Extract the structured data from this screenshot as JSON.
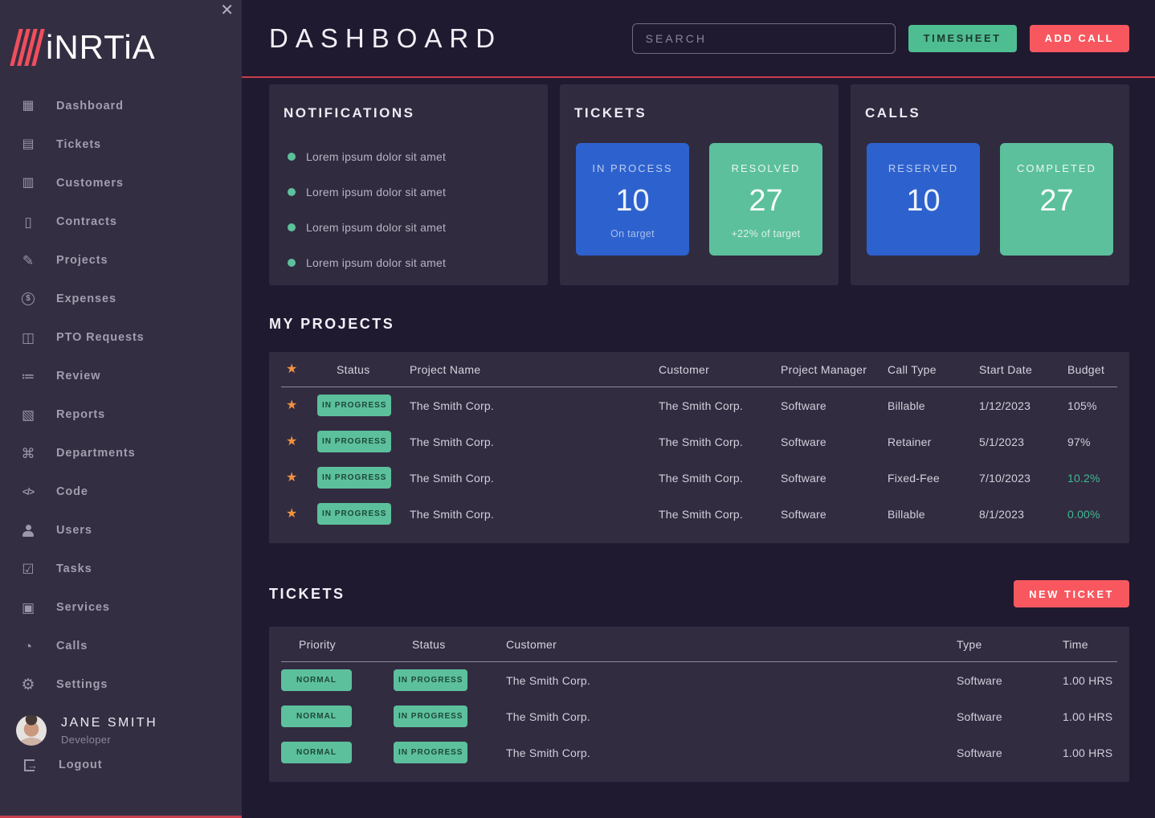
{
  "colors": {
    "page_bg": "#201a31",
    "sidebar_bg": "#342e43",
    "card_bg": "#312b40",
    "table_bg": "#322c41",
    "accent_red": "#f8575f",
    "accent_green": "#5cc09c",
    "accent_blue": "#2d62ce",
    "star_orange": "#f0923f",
    "line_red": "#c93e4d"
  },
  "sidebar": {
    "logo_text": "iNRTiA",
    "close_glyph": "✕",
    "items": [
      {
        "name": "sidebar-item-dashboard",
        "icon_name": "dashboard-icon",
        "glyph": "▦",
        "label": "Dashboard"
      },
      {
        "name": "sidebar-item-tickets",
        "icon_name": "tickets-icon",
        "glyph": "▤",
        "label": "Tickets"
      },
      {
        "name": "sidebar-item-customers",
        "icon_name": "customers-icon",
        "glyph": "▥",
        "label": "Customers"
      },
      {
        "name": "sidebar-item-contracts",
        "icon_name": "contracts-icon",
        "glyph": "▯",
        "label": "Contracts"
      },
      {
        "name": "sidebar-item-projects",
        "icon_name": "projects-icon",
        "glyph": "✎",
        "label": "Projects"
      },
      {
        "name": "sidebar-item-expenses",
        "icon_name": "expenses-icon",
        "glyph": "$",
        "label": "Expenses"
      },
      {
        "name": "sidebar-item-pto-requests",
        "icon_name": "pto-requests-icon",
        "glyph": "◫",
        "label": "PTO Requests"
      },
      {
        "name": "sidebar-item-review",
        "icon_name": "review-icon",
        "glyph": "≔",
        "label": "Review"
      },
      {
        "name": "sidebar-item-reports",
        "icon_name": "reports-icon",
        "glyph": "▧",
        "label": "Reports"
      },
      {
        "name": "sidebar-item-departments",
        "icon_name": "departments-icon",
        "glyph": "⌘",
        "label": "Departments"
      },
      {
        "name": "sidebar-item-code",
        "icon_name": "code-icon",
        "glyph": "</>",
        "label": "Code"
      },
      {
        "name": "sidebar-item-users",
        "icon_name": "users-icon",
        "glyph": "",
        "label": "Users"
      },
      {
        "name": "sidebar-item-tasks",
        "icon_name": "tasks-icon",
        "glyph": "☑",
        "label": "Tasks"
      },
      {
        "name": "sidebar-item-services",
        "icon_name": "services-icon",
        "glyph": "▣",
        "label": "Services"
      },
      {
        "name": "sidebar-item-calls",
        "icon_name": "calls-icon",
        "glyph": "◔",
        "label": "Calls"
      },
      {
        "name": "sidebar-item-settings",
        "icon_name": "settings-icon",
        "glyph": "⚙",
        "label": "Settings"
      }
    ],
    "user": {
      "name": "JANE SMITH",
      "role": "Developer"
    },
    "logout_glyph": "→",
    "logout_label": "Logout"
  },
  "header": {
    "title": "DASHBOARD",
    "search_placeholder": "SEARCH",
    "timesheet_label": "TIMESHEET",
    "add_call_label": "ADD CALL"
  },
  "cards": {
    "notifications": {
      "title": "NOTIFICATIONS",
      "items": [
        "Lorem ipsum dolor sit amet",
        "Lorem ipsum dolor sit amet",
        "Lorem ipsum dolor sit amet",
        "Lorem ipsum dolor sit amet"
      ]
    },
    "tickets": {
      "title": "TICKETS",
      "tiles": [
        {
          "name": "in-process-tile",
          "label": "IN PROCESS",
          "value": "10",
          "subtitle": "On target",
          "color": "blue"
        },
        {
          "name": "resolved-tile",
          "label": "RESOLVED",
          "value": "27",
          "subtitle": "+22% of target",
          "color": "green"
        }
      ]
    },
    "calls": {
      "title": "CALLS",
      "tiles": [
        {
          "name": "reserved-tile",
          "label": "RESERVED",
          "value": "10",
          "color": "blue"
        },
        {
          "name": "completed-tile",
          "label": "COMPLETED",
          "value": "27",
          "color": "green"
        }
      ]
    }
  },
  "projects": {
    "title": "MY PROJECTS",
    "columns": [
      "Status",
      "Project Name",
      "Customer",
      "Project Manager",
      "Call Type",
      "Start Date",
      "Budget"
    ],
    "rows": [
      {
        "status": "IN PROGRESS",
        "project_name": "The Smith Corp.",
        "customer": "The Smith Corp.",
        "project_manager": "Software",
        "call_type": "Billable",
        "start_date": "1/12/2023",
        "budget": "105%",
        "budget_class": "budget-plain"
      },
      {
        "status": "IN PROGRESS",
        "project_name": "The Smith Corp.",
        "customer": "The Smith Corp.",
        "project_manager": "Software",
        "call_type": "Retainer",
        "start_date": "5/1/2023",
        "budget": "97%",
        "budget_class": "budget-plain"
      },
      {
        "status": "IN PROGRESS",
        "project_name": "The Smith Corp.",
        "customer": "The Smith Corp.",
        "project_manager": "Software",
        "call_type": "Fixed-Fee",
        "start_date": "7/10/2023",
        "budget": "10.2%",
        "budget_class": "budget-green"
      },
      {
        "status": "IN PROGRESS",
        "project_name": "The Smith Corp.",
        "customer": "The Smith Corp.",
        "project_manager": "Software",
        "call_type": "Billable",
        "start_date": "8/1/2023",
        "budget": "0.00%",
        "budget_class": "budget-green"
      }
    ]
  },
  "tickets_section": {
    "title": "TICKETS",
    "new_ticket_label": "NEW TICKET",
    "columns": [
      "Priority",
      "Status",
      "Customer",
      "Type",
      "Time"
    ],
    "rows": [
      {
        "priority": "NORMAL",
        "status": "IN PROGRESS",
        "customer": "The Smith Corp.",
        "type": "Software",
        "time": "1.00 HRS"
      },
      {
        "priority": "NORMAL",
        "status": "IN PROGRESS",
        "customer": "The Smith Corp.",
        "type": "Software",
        "time": "1.00 HRS"
      },
      {
        "priority": "NORMAL",
        "status": "IN PROGRESS",
        "customer": "The Smith Corp.",
        "type": "Software",
        "time": "1.00 HRS"
      }
    ]
  }
}
